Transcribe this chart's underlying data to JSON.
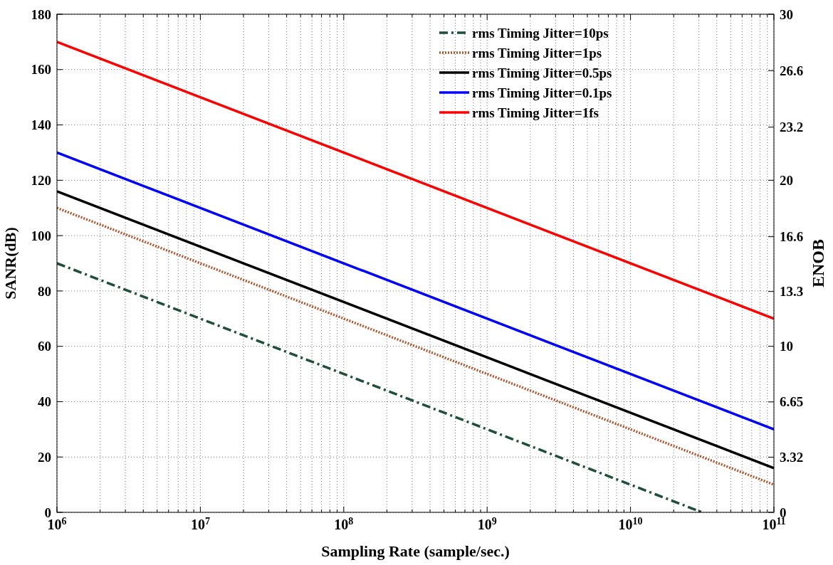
{
  "chart_data": {
    "type": "line",
    "xlabel": "Sampling Rate (sample/sec.)",
    "ylabel": "SANR(dB)",
    "y2label": "ENOB",
    "log": "x",
    "xlim": [
      1000000,
      100000000000
    ],
    "xticks": [
      {
        "value": 1000000,
        "label": "10$^{6}$"
      },
      {
        "value": 2000000,
        "label": null
      },
      {
        "value": 3000000,
        "label": null
      },
      {
        "value": 4000000,
        "label": null
      },
      {
        "value": 5000000,
        "label": null
      },
      {
        "value": 6000000,
        "label": null
      },
      {
        "value": 7000000,
        "label": null
      },
      {
        "value": 8000000,
        "label": null
      },
      {
        "value": 9000000,
        "label": null
      },
      {
        "value": 10000000,
        "label": "10$^{7}$"
      },
      {
        "value": 20000000,
        "label": null
      },
      {
        "value": 30000000,
        "label": null
      },
      {
        "value": 40000000,
        "label": null
      },
      {
        "value": 50000000,
        "label": null
      },
      {
        "value": 60000000,
        "label": null
      },
      {
        "value": 70000000,
        "label": null
      },
      {
        "value": 80000000,
        "label": null
      },
      {
        "value": 90000000,
        "label": null
      },
      {
        "value": 100000000,
        "label": "10$^{8}$"
      },
      {
        "value": 200000000,
        "label": null
      },
      {
        "value": 300000000,
        "label": null
      },
      {
        "value": 400000000,
        "label": null
      },
      {
        "value": 500000000,
        "label": null
      },
      {
        "value": 600000000,
        "label": null
      },
      {
        "value": 700000000,
        "label": null
      },
      {
        "value": 800000000,
        "label": null
      },
      {
        "value": 900000000,
        "label": null
      },
      {
        "value": 1000000000,
        "label": "10$^{9}$"
      },
      {
        "value": 2000000000,
        "label": null
      },
      {
        "value": 3000000000,
        "label": null
      },
      {
        "value": 4000000000,
        "label": null
      },
      {
        "value": 5000000000,
        "label": null
      },
      {
        "value": 6000000000,
        "label": null
      },
      {
        "value": 7000000000,
        "label": null
      },
      {
        "value": 8000000000,
        "label": null
      },
      {
        "value": 9000000000,
        "label": null
      },
      {
        "value": 10000000000,
        "label": "10$^{10}$"
      },
      {
        "value": 20000000000,
        "label": null
      },
      {
        "value": 30000000000,
        "label": null
      },
      {
        "value": 40000000000,
        "label": null
      },
      {
        "value": 50000000000,
        "label": null
      },
      {
        "value": 60000000000,
        "label": null
      },
      {
        "value": 70000000000,
        "label": null
      },
      {
        "value": 80000000000,
        "label": null
      },
      {
        "value": 90000000000,
        "label": null
      },
      {
        "value": 100000000000,
        "label": "10$^{11}$"
      }
    ],
    "ylim": [
      0,
      180
    ],
    "yticks": [
      0,
      20,
      40,
      60,
      80,
      100,
      120,
      140,
      160,
      180
    ],
    "y2lim": [
      0,
      30
    ],
    "y2ticks": [
      0,
      3.32,
      6.65,
      10,
      13.3,
      16.6,
      20,
      23.2,
      26.6,
      30
    ],
    "grid": true,
    "legend": "top right",
    "marker": "none",
    "series": [
      {
        "name": "rms Timing Jitter=10ps",
        "color": "#1f4f3a",
        "line_style": "dashed",
        "x": [
          1000000,
          31600000000
        ],
        "values": [
          90,
          0
        ]
      },
      {
        "name": "rms Timing Jitter=1ps",
        "color": "#b0552d",
        "line_style": "dotted",
        "x": [
          1000000,
          100000000000
        ],
        "values": [
          110,
          10
        ]
      },
      {
        "name": "rms Timing Jitter=0.5ps",
        "color": "#000000",
        "line_style": "solid",
        "x": [
          1000000,
          100000000000
        ],
        "values": [
          116,
          16
        ]
      },
      {
        "name": "rms Timing Jitter=0.1ps",
        "color": "#0000ff",
        "line_style": "solid",
        "x": [
          1000000,
          100000000000
        ],
        "values": [
          130,
          30
        ]
      },
      {
        "name": "rms Timing Jitter=1fs",
        "color": "#ff0000",
        "line_style": "solid",
        "x": [
          1000000,
          100000000000
        ],
        "values": [
          170,
          70
        ]
      }
    ]
  }
}
